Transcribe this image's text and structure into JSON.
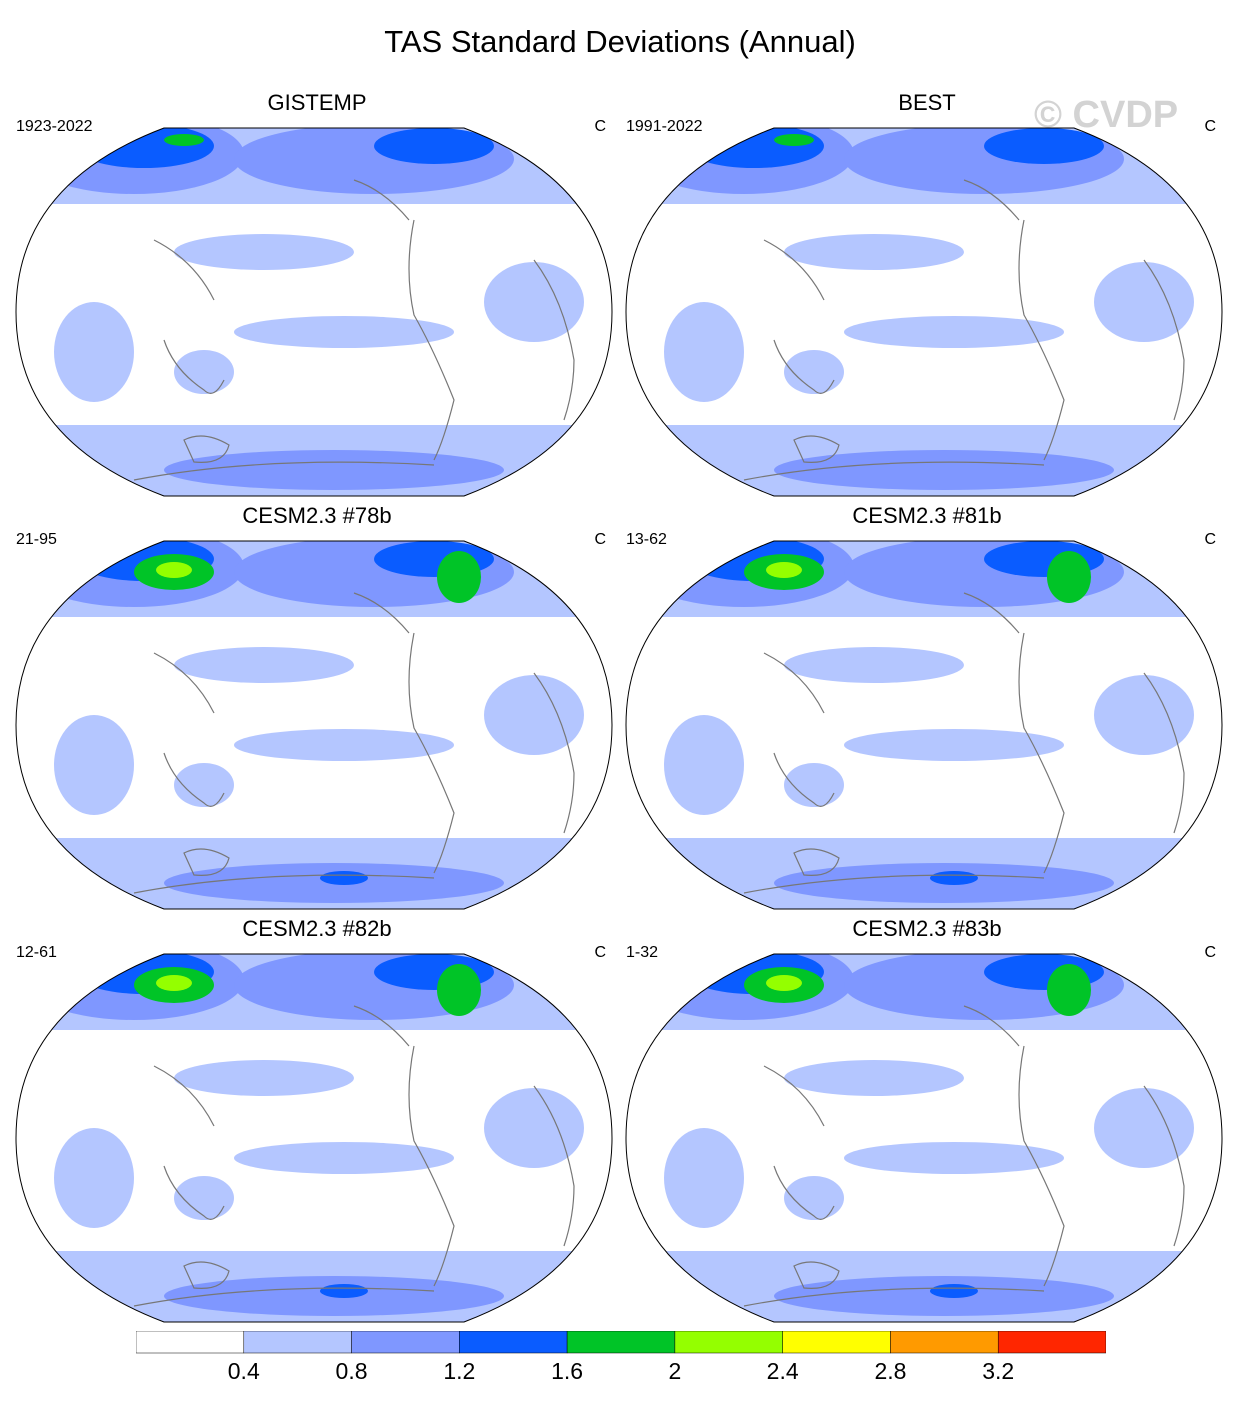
{
  "title": "TAS Standard Deviations (Annual)",
  "watermark": "© CVDP",
  "panels": [
    {
      "title": "GISTEMP",
      "left": "1923-2022",
      "right": "C"
    },
    {
      "title": "BEST",
      "left": "1991-2022",
      "right": "C"
    },
    {
      "title": "CESM2.3 #78b",
      "left": "21-95",
      "right": "C"
    },
    {
      "title": "CESM2.3 #81b",
      "left": "13-62",
      "right": "C"
    },
    {
      "title": "CESM2.3 #82b",
      "left": "12-61",
      "right": "C"
    },
    {
      "title": "CESM2.3 #83b",
      "left": "1-32",
      "right": "C"
    }
  ],
  "colorbar": {
    "labels": [
      "0.4",
      "0.8",
      "1.2",
      "1.6",
      "2",
      "2.4",
      "2.8",
      "3.2"
    ],
    "colors": [
      "#ffffff",
      "#b4c6ff",
      "#7f97ff",
      "#0a5cff",
      "#00c427",
      "#94ff00",
      "#ffff00",
      "#ff9a00",
      "#ff2600"
    ]
  }
}
